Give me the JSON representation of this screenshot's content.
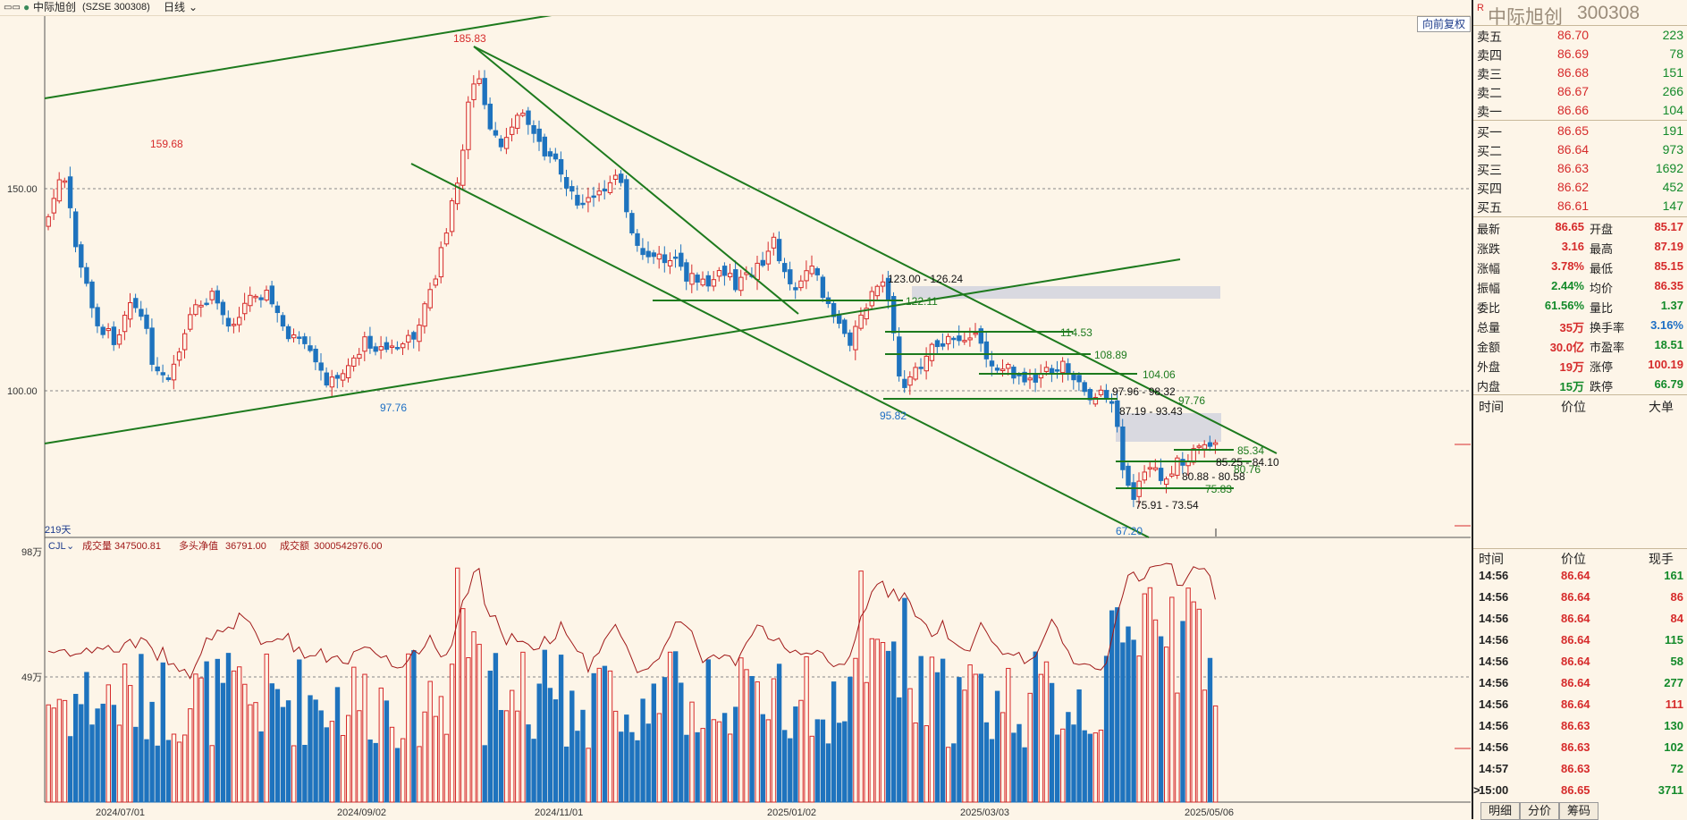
{
  "header": {
    "window_icon": "window-icon",
    "stock_name": "中际旭创",
    "code": "(SZSE 300308)",
    "period": "日线",
    "adjust_button": "向前复权"
  },
  "price_axis": {
    "ticks": [
      "150.00",
      "100.00"
    ],
    "days": "219天"
  },
  "volume_axis": {
    "ticks": [
      "98万",
      "49万"
    ]
  },
  "volume_legend": {
    "indicator": "CJL",
    "vol_label": "成交量",
    "vol_value": "347500.81",
    "net_label": "多头净值",
    "net_value": "36791.00",
    "amt_label": "成交额",
    "amt_value": "3000542976.00"
  },
  "date_axis": [
    "2024/07/01",
    "2024/09/02",
    "2024/11/01",
    "2025/01/02",
    "2025/03/03",
    "2025/05/06"
  ],
  "annotations": {
    "hi1": "159.68",
    "hi2": "185.83",
    "lo1": "97.76",
    "lo2": "95.82",
    "lo3": "67.20",
    "z1": "123.00 - 126.24",
    "l1": "122.11",
    "l2": "114.53",
    "l3": "108.89",
    "l4": "104.06",
    "z2": "97.96 - 98.32",
    "l5": "97.76",
    "z3": "87.19 - 93.43",
    "l6": "85.34",
    "z4": "85.25 - 84.10",
    "l7": "80.76",
    "z5": "80.88 - 80.58",
    "l8": "75.83",
    "z6": "75.91 - 73.54"
  },
  "quote": {
    "logo": "R",
    "name": "中际旭创",
    "code": "300308",
    "asks": [
      {
        "label": "卖五",
        "price": "86.70",
        "vol": "223"
      },
      {
        "label": "卖四",
        "price": "86.69",
        "vol": "78"
      },
      {
        "label": "卖三",
        "price": "86.68",
        "vol": "151"
      },
      {
        "label": "卖二",
        "price": "86.67",
        "vol": "266"
      },
      {
        "label": "卖一",
        "price": "86.66",
        "vol": "104"
      }
    ],
    "bids": [
      {
        "label": "买一",
        "price": "86.65",
        "vol": "191"
      },
      {
        "label": "买二",
        "price": "86.64",
        "vol": "973"
      },
      {
        "label": "买三",
        "price": "86.63",
        "vol": "1692"
      },
      {
        "label": "买四",
        "price": "86.62",
        "vol": "452"
      },
      {
        "label": "买五",
        "price": "86.61",
        "vol": "147"
      }
    ],
    "stats": [
      {
        "l": "最新",
        "v": "86.65",
        "c": "red",
        "l2": "开盘",
        "v2": "85.17",
        "c2": "red"
      },
      {
        "l": "涨跌",
        "v": "3.16",
        "c": "red",
        "l2": "最高",
        "v2": "87.19",
        "c2": "red"
      },
      {
        "l": "涨幅",
        "v": "3.78%",
        "c": "red",
        "l2": "最低",
        "v2": "85.15",
        "c2": "red"
      },
      {
        "l": "振幅",
        "v": "2.44%",
        "c": "green",
        "l2": "均价",
        "v2": "86.35",
        "c2": "red"
      },
      {
        "l": "委比",
        "v": "61.56%",
        "c": "green",
        "l2": "量比",
        "v2": "1.37",
        "c2": "green"
      },
      {
        "l": "总量",
        "v": "35万",
        "c": "red",
        "l2": "换手率",
        "v2": "3.16%",
        "c2": "blue"
      },
      {
        "l": "金额",
        "v": "30.0亿",
        "c": "red",
        "l2": "市盈率",
        "v2": "18.51",
        "c2": "green"
      },
      {
        "l": "外盘",
        "v": "19万",
        "c": "red",
        "l2": "涨停",
        "v2": "100.19",
        "c2": "red"
      },
      {
        "l": "内盘",
        "v": "15万",
        "c": "green",
        "l2": "跌停",
        "v2": "66.79",
        "c2": "green"
      }
    ],
    "bigorder_header": {
      "time": "时间",
      "price": "价位",
      "big": "大单"
    },
    "ticks_header": {
      "time": "时间",
      "price": "价位",
      "now": "现手"
    },
    "ticks": [
      {
        "t": "14:56",
        "p": "86.64",
        "v": "161",
        "c": "green"
      },
      {
        "t": "14:56",
        "p": "86.64",
        "v": "86",
        "c": "red"
      },
      {
        "t": "14:56",
        "p": "86.64",
        "v": "84",
        "c": "red"
      },
      {
        "t": "14:56",
        "p": "86.64",
        "v": "115",
        "c": "green"
      },
      {
        "t": "14:56",
        "p": "86.64",
        "v": "58",
        "c": "green"
      },
      {
        "t": "14:56",
        "p": "86.64",
        "v": "277",
        "c": "green"
      },
      {
        "t": "14:56",
        "p": "86.64",
        "v": "111",
        "c": "red"
      },
      {
        "t": "14:56",
        "p": "86.63",
        "v": "130",
        "c": "green"
      },
      {
        "t": "14:56",
        "p": "86.63",
        "v": "102",
        "c": "green"
      },
      {
        "t": "14:57",
        "p": "86.63",
        "v": "72",
        "c": "green"
      },
      {
        "t": "15:00",
        "p": "86.65",
        "v": "3711",
        "c": "green",
        "marker": ">"
      }
    ],
    "tabs": [
      "明细",
      "分价",
      "筹码"
    ]
  },
  "colors": {
    "up": "#d62b2b",
    "down": "#1e73be",
    "trend": "#1d7a1d",
    "bg": "#fdf5e8",
    "zone": "#d9d9e0",
    "ma": "#a01818"
  }
}
